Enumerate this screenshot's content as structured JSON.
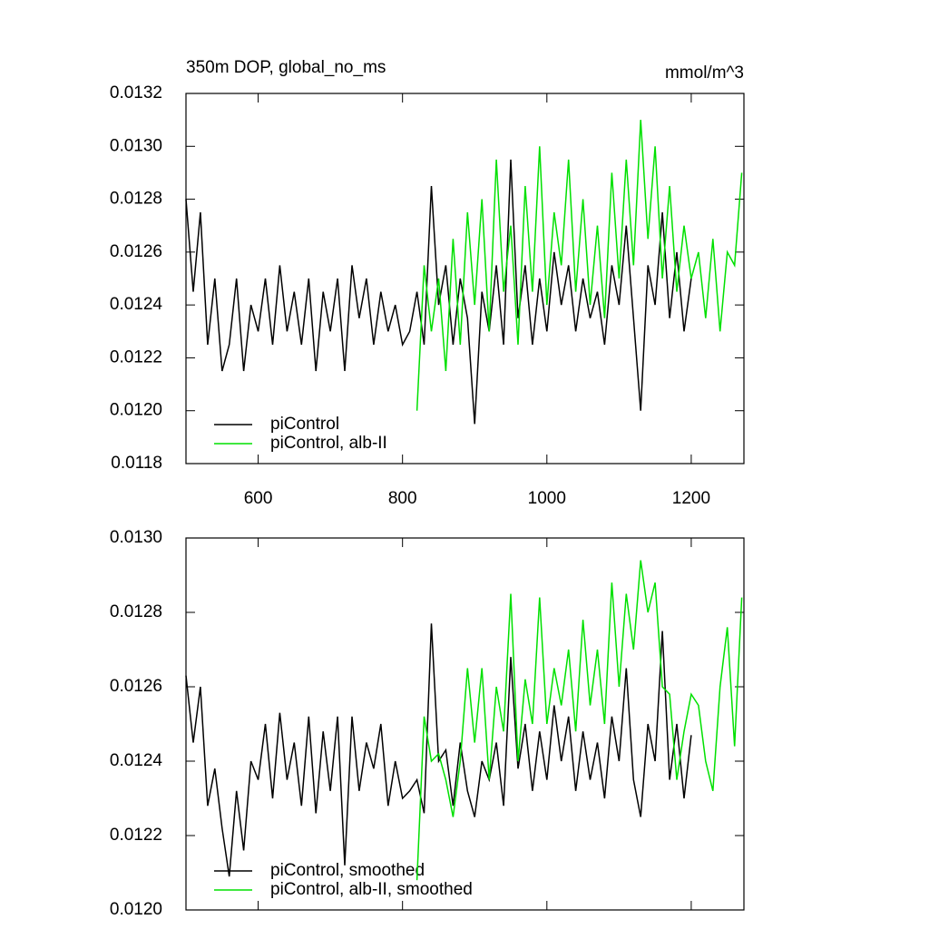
{
  "chart_data": [
    {
      "type": "line",
      "title": "350m DOP, global_no_ms",
      "units": "mmol/m^3",
      "legend": "lower left",
      "xlim": [
        500,
        1273
      ],
      "xticks": [
        600,
        800,
        1000,
        1200
      ],
      "ylim": [
        0.0118,
        0.0132
      ],
      "yticks": [
        0.0118,
        {
          "value": 0.012,
          "label": "0.0120"
        },
        0.0122,
        0.0124,
        0.0126,
        0.0128,
        {
          "value": 0.013,
          "label": "0.0130"
        },
        0.0132
      ],
      "series": [
        {
          "name": "piControl",
          "color": "#000000",
          "x": [
            500,
            510,
            520,
            530,
            540,
            550,
            560,
            570,
            580,
            590,
            600,
            610,
            620,
            630,
            640,
            650,
            660,
            670,
            680,
            690,
            700,
            710,
            720,
            730,
            740,
            750,
            760,
            770,
            780,
            790,
            800,
            810,
            820,
            830,
            840,
            850,
            860,
            870,
            880,
            890,
            900,
            910,
            920,
            930,
            940,
            950,
            960,
            970,
            980,
            990,
            1000,
            1010,
            1020,
            1030,
            1040,
            1050,
            1060,
            1070,
            1080,
            1090,
            1100,
            1110,
            1120,
            1130,
            1140,
            1150,
            1160,
            1170,
            1180,
            1190,
            1200
          ],
          "values": [
            0.0128,
            0.01245,
            0.01275,
            0.01225,
            0.0125,
            0.01215,
            0.01225,
            0.0125,
            0.01215,
            0.0124,
            0.0123,
            0.0125,
            0.01225,
            0.01255,
            0.0123,
            0.01245,
            0.01225,
            0.0125,
            0.01215,
            0.01245,
            0.0123,
            0.0125,
            0.01215,
            0.01255,
            0.01235,
            0.0125,
            0.01225,
            0.01245,
            0.0123,
            0.0124,
            0.01225,
            0.0123,
            0.01245,
            0.01225,
            0.01285,
            0.0124,
            0.01255,
            0.01225,
            0.0125,
            0.01235,
            0.01195,
            0.01245,
            0.0123,
            0.01255,
            0.01225,
            0.01295,
            0.01235,
            0.01255,
            0.01225,
            0.0125,
            0.0123,
            0.0126,
            0.0124,
            0.01255,
            0.0123,
            0.0125,
            0.01235,
            0.01245,
            0.01225,
            0.01255,
            0.0124,
            0.0127,
            0.01235,
            0.012,
            0.01255,
            0.0124,
            0.01275,
            0.01235,
            0.0126,
            0.0123,
            0.0125
          ]
        },
        {
          "name": "piControl, alb-II",
          "color": "#00e000",
          "x": [
            820,
            830,
            840,
            850,
            860,
            870,
            880,
            890,
            900,
            910,
            920,
            930,
            940,
            950,
            960,
            970,
            980,
            990,
            1000,
            1010,
            1020,
            1030,
            1040,
            1050,
            1060,
            1070,
            1080,
            1090,
            1100,
            1110,
            1120,
            1130,
            1140,
            1150,
            1160,
            1170,
            1180,
            1190,
            1200,
            1210,
            1220,
            1230,
            1240,
            1250,
            1260,
            1270
          ],
          "values": [
            0.012,
            0.01255,
            0.0123,
            0.0125,
            0.01215,
            0.01265,
            0.01225,
            0.01275,
            0.0124,
            0.0128,
            0.0123,
            0.01295,
            0.01245,
            0.0127,
            0.01225,
            0.01285,
            0.01245,
            0.013,
            0.0124,
            0.01275,
            0.01255,
            0.01295,
            0.01245,
            0.0128,
            0.0124,
            0.0127,
            0.01235,
            0.0129,
            0.0125,
            0.01295,
            0.01255,
            0.0131,
            0.01265,
            0.013,
            0.0125,
            0.01285,
            0.01245,
            0.0127,
            0.0125,
            0.0126,
            0.01235,
            0.01265,
            0.0123,
            0.0126,
            0.01255,
            0.0129
          ]
        }
      ]
    },
    {
      "type": "line",
      "legend": "lower left",
      "xlim": [
        500,
        1273
      ],
      "xticks": [
        600,
        800,
        1000,
        1200
      ],
      "ylim": [
        0.012,
        0.013
      ],
      "yticks": [
        {
          "value": 0.012,
          "label": "0.0120"
        },
        0.0122,
        0.0124,
        0.0126,
        0.0128,
        {
          "value": 0.013,
          "label": "0.0130"
        }
      ],
      "series": [
        {
          "name": "piControl, smoothed",
          "color": "#000000",
          "x": [
            500,
            510,
            520,
            530,
            540,
            550,
            560,
            570,
            580,
            590,
            600,
            610,
            620,
            630,
            640,
            650,
            660,
            670,
            680,
            690,
            700,
            710,
            720,
            730,
            740,
            750,
            760,
            770,
            780,
            790,
            800,
            810,
            820,
            830,
            840,
            850,
            860,
            870,
            880,
            890,
            900,
            910,
            920,
            930,
            940,
            950,
            960,
            970,
            980,
            990,
            1000,
            1010,
            1020,
            1030,
            1040,
            1050,
            1060,
            1070,
            1080,
            1090,
            1100,
            1110,
            1120,
            1130,
            1140,
            1150,
            1160,
            1170,
            1180,
            1190,
            1200
          ],
          "values": [
            0.01263,
            0.01245,
            0.0126,
            0.01228,
            0.01238,
            0.01222,
            0.01209,
            0.01232,
            0.01216,
            0.0124,
            0.01235,
            0.0125,
            0.0123,
            0.01253,
            0.01235,
            0.01245,
            0.01228,
            0.01252,
            0.01226,
            0.01248,
            0.01232,
            0.01252,
            0.01212,
            0.01252,
            0.01232,
            0.01245,
            0.01238,
            0.0125,
            0.01228,
            0.0124,
            0.0123,
            0.01232,
            0.01235,
            0.01226,
            0.01277,
            0.0124,
            0.01243,
            0.01228,
            0.01245,
            0.01232,
            0.01225,
            0.0124,
            0.01235,
            0.01245,
            0.01228,
            0.01268,
            0.01238,
            0.0125,
            0.01232,
            0.01248,
            0.01235,
            0.01255,
            0.0124,
            0.01252,
            0.01232,
            0.01248,
            0.01235,
            0.01245,
            0.0123,
            0.01252,
            0.0124,
            0.01265,
            0.01235,
            0.01225,
            0.0125,
            0.0124,
            0.01275,
            0.01235,
            0.0125,
            0.0123,
            0.01247
          ]
        },
        {
          "name": "piControl, alb-II, smoothed",
          "color": "#00e000",
          "x": [
            820,
            830,
            840,
            850,
            860,
            870,
            880,
            890,
            900,
            910,
            920,
            930,
            940,
            950,
            960,
            970,
            980,
            990,
            1000,
            1010,
            1020,
            1030,
            1040,
            1050,
            1060,
            1070,
            1080,
            1090,
            1100,
            1110,
            1120,
            1130,
            1140,
            1150,
            1160,
            1170,
            1180,
            1190,
            1200,
            1210,
            1220,
            1230,
            1240,
            1250,
            1260,
            1270
          ],
          "values": [
            0.01208,
            0.01252,
            0.0124,
            0.01242,
            0.01235,
            0.01225,
            0.0124,
            0.01265,
            0.01245,
            0.01265,
            0.01235,
            0.0126,
            0.01248,
            0.01285,
            0.0124,
            0.01262,
            0.0125,
            0.01284,
            0.0125,
            0.01265,
            0.01255,
            0.0127,
            0.01248,
            0.01278,
            0.01255,
            0.0127,
            0.0125,
            0.01288,
            0.0126,
            0.01285,
            0.0127,
            0.01294,
            0.0128,
            0.01288,
            0.0126,
            0.01258,
            0.01235,
            0.01248,
            0.01258,
            0.01255,
            0.0124,
            0.01232,
            0.0126,
            0.01276,
            0.01244,
            0.01284
          ]
        }
      ]
    }
  ]
}
